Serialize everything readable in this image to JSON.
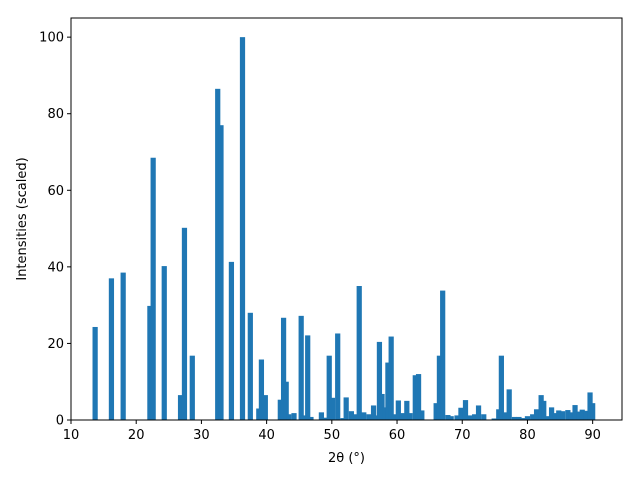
{
  "chart_data": {
    "type": "bar",
    "title": "",
    "xlabel": "2θ (°)",
    "ylabel": "Intensities (scaled)",
    "xlim": [
      10,
      94.5
    ],
    "ylim": [
      0,
      105
    ],
    "xticks": [
      10,
      20,
      30,
      40,
      50,
      60,
      70,
      80,
      90
    ],
    "yticks": [
      0,
      20,
      40,
      60,
      80,
      100
    ],
    "grid": false,
    "legend": "none",
    "bar_color": "#1f77b4",
    "bar_width": 0.8,
    "x": [
      13.7,
      16.2,
      18.0,
      22.1,
      22.6,
      24.3,
      26.8,
      27.4,
      28.6,
      32.5,
      33.0,
      34.6,
      36.3,
      37.5,
      38.8,
      39.2,
      39.8,
      42.1,
      42.6,
      43.0,
      43.4,
      44.2,
      45.3,
      45.6,
      46.3,
      46.8,
      48.4,
      49.1,
      49.6,
      50.1,
      50.9,
      51.7,
      52.2,
      53.0,
      53.7,
      54.2,
      54.9,
      55.7,
      56.4,
      56.8,
      57.3,
      57.7,
      58.1,
      58.6,
      59.1,
      59.5,
      60.2,
      60.8,
      61.5,
      62.0,
      62.8,
      63.3,
      63.8,
      66.0,
      66.5,
      67.0,
      67.8,
      68.3,
      69.2,
      69.8,
      70.5,
      71.2,
      71.9,
      72.5,
      73.3,
      74.9,
      75.6,
      76.0,
      76.5,
      77.2,
      78.0,
      78.7,
      79.4,
      80.0,
      80.8,
      81.4,
      82.1,
      82.5,
      83.1,
      83.7,
      84.2,
      84.8,
      85.4,
      86.2,
      86.7,
      87.3,
      87.9,
      88.4,
      89.0,
      89.6,
      90.0
    ],
    "values": [
      24.3,
      37.0,
      38.5,
      29.8,
      68.5,
      40.2,
      6.5,
      50.2,
      16.8,
      86.5,
      77.0,
      41.3,
      100.0,
      28.0,
      3.0,
      15.8,
      6.5,
      5.3,
      26.7,
      10.0,
      1.5,
      1.8,
      27.2,
      1.2,
      22.1,
      0.8,
      2.0,
      0.6,
      16.8,
      5.8,
      22.6,
      0.5,
      5.9,
      2.3,
      1.5,
      35.0,
      2.0,
      1.5,
      3.8,
      1.2,
      20.4,
      6.8,
      3.3,
      15.0,
      21.8,
      1.5,
      5.1,
      1.8,
      5.0,
      1.8,
      11.7,
      12.0,
      2.5,
      4.4,
      16.8,
      33.8,
      1.3,
      1.0,
      1.2,
      3.2,
      5.2,
      1.2,
      1.5,
      3.8,
      1.5,
      0.4,
      2.8,
      16.8,
      2.0,
      8.0,
      0.8,
      0.8,
      0.5,
      1.0,
      1.5,
      2.8,
      6.5,
      5.0,
      1.0,
      3.3,
      1.8,
      2.5,
      2.3,
      2.6,
      2.0,
      3.9,
      2.2,
      2.7,
      2.4,
      7.2,
      4.4
    ]
  }
}
